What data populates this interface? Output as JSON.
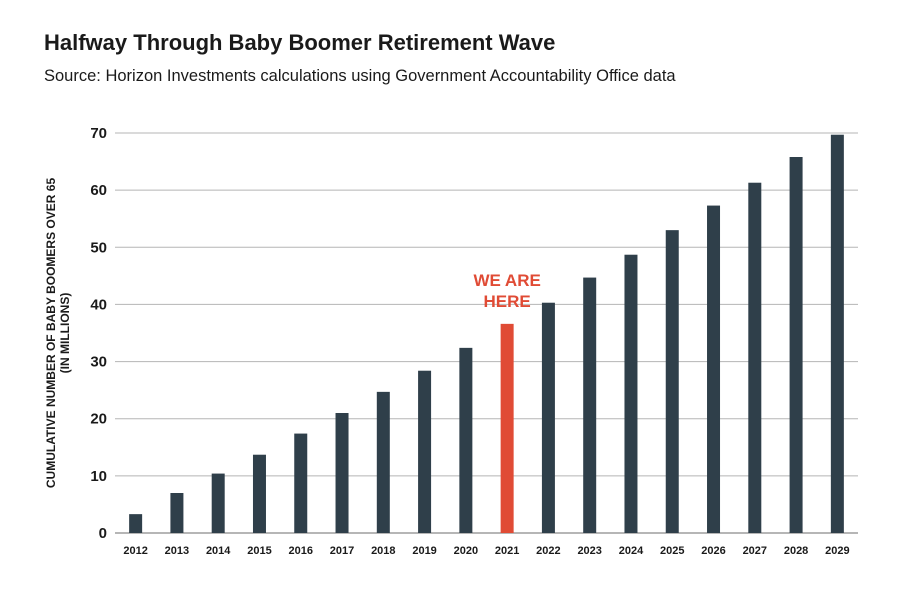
{
  "chart_data": {
    "type": "bar",
    "title": "Halfway Through Baby Boomer Retirement Wave",
    "subtitle": "Source: Horizon Investments calculations using Government Accountability Office data",
    "xlabel": "",
    "ylabel": [
      "CUMULATIVE NUMBER OF BABY BOOMERS OVER 65",
      "(IN MILLIONS)"
    ],
    "categories": [
      "2012",
      "2013",
      "2014",
      "2015",
      "2016",
      "2017",
      "2018",
      "2019",
      "2020",
      "2021",
      "2022",
      "2023",
      "2024",
      "2025",
      "2026",
      "2027",
      "2028",
      "2029"
    ],
    "values": [
      3.3,
      7.0,
      10.4,
      13.7,
      17.4,
      21.0,
      24.7,
      28.4,
      32.4,
      36.6,
      40.3,
      44.7,
      48.7,
      53.0,
      57.3,
      61.3,
      65.8,
      69.7
    ],
    "ylim": [
      0,
      70
    ],
    "yticks": [
      0,
      10,
      20,
      30,
      40,
      50,
      60,
      70
    ],
    "grid": true,
    "colors": {
      "bar": "#2f3f4a",
      "highlight": "#e04b35",
      "grid": "#b5b5b5"
    },
    "highlight_category": "2021",
    "annotation": [
      "WE ARE",
      "HERE"
    ]
  }
}
